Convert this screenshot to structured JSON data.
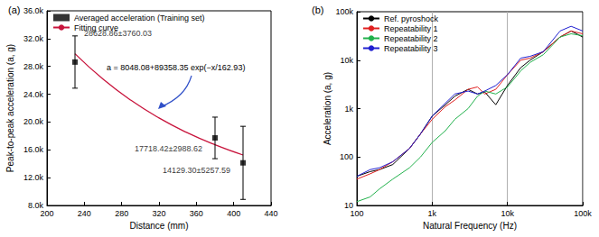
{
  "chart_data": [
    {
      "type": "scatter",
      "title": "(a)",
      "xlabel": "Distance (mm)",
      "ylabel": "Peak-to-peak acceleration (a, g)",
      "xlim": [
        200,
        440
      ],
      "xticks": [
        200,
        240,
        280,
        320,
        360,
        400,
        440
      ],
      "ylim": [
        8000,
        36000
      ],
      "yticks": [
        {
          "value": 8000,
          "label": "8.0k"
        },
        {
          "value": 12000,
          "label": "12.0k"
        },
        {
          "value": 16000,
          "label": "16.0k"
        },
        {
          "value": 20000,
          "label": "20.0k"
        },
        {
          "value": 24000,
          "label": "24.0k"
        },
        {
          "value": 28000,
          "label": "28.0k"
        },
        {
          "value": 32000,
          "label": "32.0k"
        },
        {
          "value": 36000,
          "label": "36.0k"
        }
      ],
      "grid": false,
      "legend": "upper left",
      "annotation": "a = 8048.08+89358.35 exp(−x/162.93)",
      "series": [
        {
          "name": "Averaged acceleration (Training set)",
          "type": "scatter",
          "marker": "square",
          "color": "#000000",
          "x": [
            230,
            380,
            410
          ],
          "values": [
            28628.86,
            17718.42,
            14129.3
          ],
          "errors": [
            3760.03,
            2988.62,
            5257.59
          ],
          "value_labels": [
            "28628.86±3760.03",
            "17718.42±2988.62",
            "14129.30±5257.59"
          ]
        },
        {
          "name": "Fitting curve",
          "type": "line",
          "line_style": "solid",
          "color": "#c8143c",
          "x": [
            230,
            260,
            290,
            320,
            350,
            380,
            410
          ],
          "values": [
            29825,
            26170,
            23123,
            20585,
            18476,
            16725,
            15259
          ]
        }
      ]
    },
    {
      "type": "line",
      "title": "(b)",
      "xlabel": "Natural Frequency (Hz)",
      "ylabel": "Acceleration (a, g)",
      "log": true,
      "xlim": [
        100,
        100000
      ],
      "xticks": [
        100,
        {
          "value": 1000,
          "label": "1k"
        },
        {
          "value": 10000,
          "label": "10k"
        },
        {
          "value": 100000,
          "label": "100k"
        }
      ],
      "ylim": [
        10,
        100000
      ],
      "yticks": [
        10,
        100,
        {
          "value": 1000,
          "label": "1k"
        },
        {
          "value": 10000,
          "label": "10k"
        },
        {
          "value": 100000,
          "label": "100k"
        }
      ],
      "grid": "x",
      "legend": "upper left",
      "x": [
        100,
        150,
        200,
        300,
        500,
        700,
        1000,
        1500,
        2000,
        3000,
        4000,
        5000,
        7000,
        10000,
        15000,
        20000,
        30000,
        50000,
        70000,
        100000
      ],
      "series": [
        {
          "name": "Ref. pyroshock",
          "color": "#000000",
          "values": [
            40,
            50,
            55,
            70,
            150,
            300,
            700,
            1200,
            1800,
            2500,
            2000,
            2200,
            1200,
            3000,
            7000,
            10000,
            15000,
            30000,
            40000,
            30000
          ]
        },
        {
          "name": "Repeatability 1",
          "color": "#e02020",
          "values": [
            35,
            45,
            55,
            80,
            150,
            300,
            600,
            1100,
            1500,
            2500,
            2800,
            2000,
            2500,
            5000,
            10000,
            11000,
            15000,
            30000,
            40000,
            35000
          ]
        },
        {
          "name": "Repeatability 2",
          "color": "#22b14c",
          "values": [
            12,
            15,
            22,
            35,
            60,
            100,
            200,
            350,
            600,
            1000,
            1800,
            2300,
            2000,
            2800,
            6000,
            9000,
            13000,
            30000,
            35000,
            32000
          ]
        },
        {
          "name": "Repeatability 3",
          "color": "#2020d0",
          "values": [
            40,
            55,
            60,
            80,
            150,
            300,
            700,
            1300,
            2000,
            2300,
            2000,
            2300,
            3000,
            5000,
            11000,
            12000,
            15000,
            40000,
            50000,
            40000
          ]
        }
      ]
    }
  ]
}
